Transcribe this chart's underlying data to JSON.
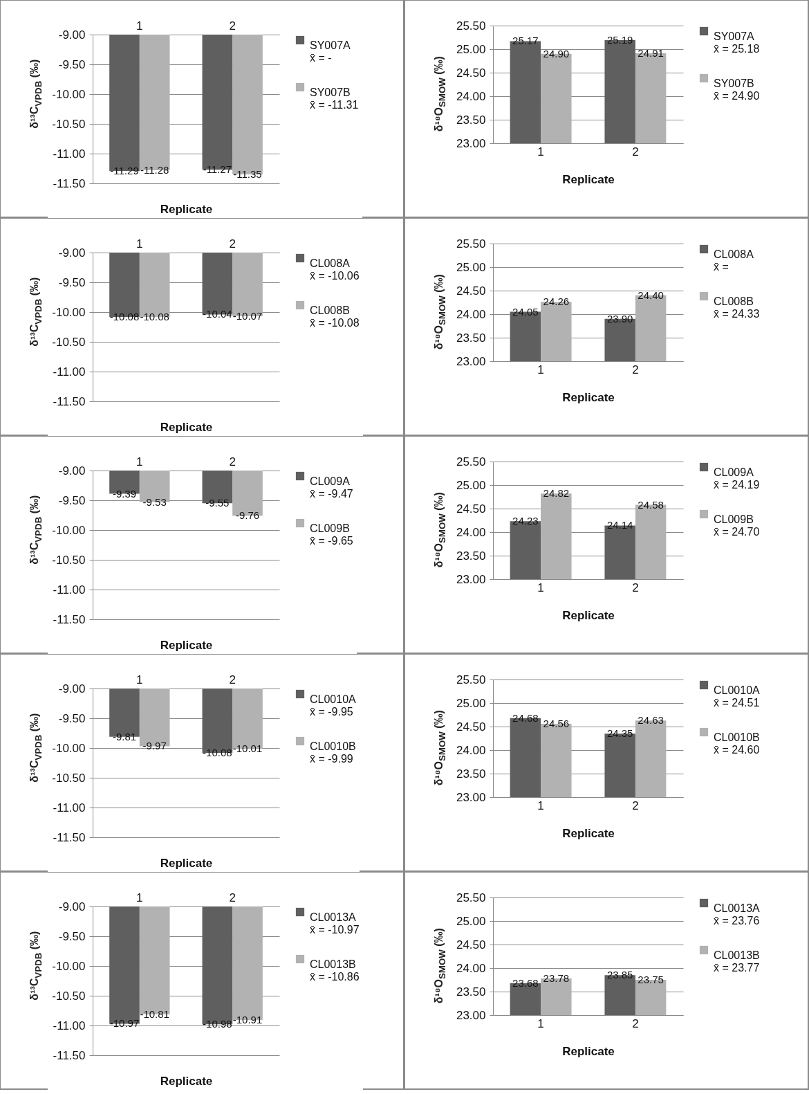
{
  "chart_data": [
    {
      "type": "bar",
      "xlabel": "Replicate",
      "ylabel": "δ¹³C$_{VPDB}$ (‰)",
      "categories": [
        "1",
        "2"
      ],
      "ylim": [
        -11.5,
        -9
      ],
      "yticks": [
        {
          "value": -9,
          "label": "-9.00"
        },
        {
          "value": -9.5,
          "label": "-9.50"
        },
        {
          "value": -10,
          "label": "-10.00"
        },
        {
          "value": -10.5,
          "label": "-10.50"
        },
        {
          "value": -11,
          "label": "-11.00"
        },
        {
          "value": -11.5,
          "label": "-11.50"
        }
      ],
      "grid": "y",
      "legend": "right",
      "annotations": [
        "x̄ = -",
        "x̄ = -11.31"
      ],
      "series": [
        {
          "name": "SY007A",
          "color": "#5f5f5f",
          "values": [
            -11.29,
            -11.27
          ],
          "value_labels": [
            "-11.29",
            "-11.27"
          ]
        },
        {
          "name": "SY007B",
          "color": "#b2b2b2",
          "values": [
            -11.28,
            -11.35
          ],
          "value_labels": [
            "-11.28",
            "-11.35"
          ]
        }
      ]
    },
    {
      "type": "bar",
      "xlabel": "Replicate",
      "ylabel": "δ¹⁸O$_{SMOW}$ (‰)",
      "categories": [
        "1",
        "2"
      ],
      "ylim": [
        23,
        25.5
      ],
      "yticks": [
        {
          "value": 23,
          "label": "23.00"
        },
        {
          "value": 23.5,
          "label": "23.50"
        },
        {
          "value": 24,
          "label": "24.00"
        },
        {
          "value": 24.5,
          "label": "24.50"
        },
        {
          "value": 25,
          "label": "25.00"
        },
        {
          "value": 25.5,
          "label": "25.50"
        }
      ],
      "grid": "y",
      "legend": "right",
      "annotations": [
        "x̄ = 25.18",
        "x̄ = 24.90"
      ],
      "series": [
        {
          "name": "SY007A",
          "color": "#5f5f5f",
          "values": [
            25.17,
            25.19
          ],
          "value_labels": [
            "25.17",
            "25.19"
          ]
        },
        {
          "name": "SY007B",
          "color": "#b2b2b2",
          "values": [
            24.9,
            24.91
          ],
          "value_labels": [
            "24.90",
            "24.91"
          ]
        }
      ]
    },
    {
      "type": "bar",
      "xlabel": "Replicate",
      "ylabel": "δ¹³C$_{VPDB}$ (‰)",
      "categories": [
        "1",
        "2"
      ],
      "ylim": [
        -11.5,
        -9
      ],
      "yticks": [
        {
          "value": -9,
          "label": "-9.00"
        },
        {
          "value": -9.5,
          "label": "-9.50"
        },
        {
          "value": -10,
          "label": "-10.00"
        },
        {
          "value": -10.5,
          "label": "-10.50"
        },
        {
          "value": -11,
          "label": "-11.00"
        },
        {
          "value": -11.5,
          "label": "-11.50"
        }
      ],
      "grid": "y",
      "legend": "right",
      "annotations": [
        "x̄ = -10.06",
        "x̄ = -10.08"
      ],
      "series": [
        {
          "name": "CL008A",
          "color": "#5f5f5f",
          "values": [
            -10.08,
            -10.04
          ],
          "value_labels": [
            "-10.08",
            "-10.04"
          ]
        },
        {
          "name": "CL008B",
          "color": "#b2b2b2",
          "values": [
            -10.08,
            -10.07
          ],
          "value_labels": [
            "-10.08",
            "-10.07"
          ]
        }
      ]
    },
    {
      "type": "bar",
      "xlabel": "Replicate",
      "ylabel": "δ¹⁸O$_{SMOW}$ (‰)",
      "categories": [
        "1",
        "2"
      ],
      "ylim": [
        23,
        25.5
      ],
      "yticks": [
        {
          "value": 23,
          "label": "23.00"
        },
        {
          "value": 23.5,
          "label": "23.50"
        },
        {
          "value": 24,
          "label": "24.00"
        },
        {
          "value": 24.5,
          "label": "24.50"
        },
        {
          "value": 25,
          "label": "25.00"
        },
        {
          "value": 25.5,
          "label": "25.50"
        }
      ],
      "grid": "y",
      "legend": "right",
      "annotations": [
        "x̄ =",
        "x̄ = 24.33"
      ],
      "series": [
        {
          "name": "CL008A",
          "color": "#5f5f5f",
          "values": [
            24.05,
            23.9
          ],
          "value_labels": [
            "24.05",
            "23.90"
          ]
        },
        {
          "name": "CL008B",
          "color": "#b2b2b2",
          "values": [
            24.26,
            24.4
          ],
          "value_labels": [
            "24.26",
            "24.40"
          ]
        }
      ]
    },
    {
      "type": "bar",
      "xlabel": "Replicate",
      "ylabel": "δ¹³C$_{VPDB}$ (‰)",
      "categories": [
        "1",
        "2"
      ],
      "ylim": [
        -11.5,
        -9
      ],
      "yticks": [
        {
          "value": -9,
          "label": "-9.00"
        },
        {
          "value": -9.5,
          "label": "-9.50"
        },
        {
          "value": -10,
          "label": "-10.00"
        },
        {
          "value": -10.5,
          "label": "-10.50"
        },
        {
          "value": -11,
          "label": "-11.00"
        },
        {
          "value": -11.5,
          "label": "-11.50"
        }
      ],
      "grid": "y",
      "legend": "right",
      "annotations": [
        "x̄ = -9.47",
        "x̄ = -9.65"
      ],
      "series": [
        {
          "name": "CL009A",
          "color": "#5f5f5f",
          "values": [
            -9.39,
            -9.55
          ],
          "value_labels": [
            "-9.39",
            "-9.55"
          ]
        },
        {
          "name": "CL009B",
          "color": "#b2b2b2",
          "values": [
            -9.53,
            -9.76
          ],
          "value_labels": [
            "-9.53",
            "-9.76"
          ]
        }
      ]
    },
    {
      "type": "bar",
      "xlabel": "Replicate",
      "ylabel": "δ¹⁸O$_{SMOW}$ (‰)",
      "categories": [
        "1",
        "2"
      ],
      "ylim": [
        23,
        25.5
      ],
      "yticks": [
        {
          "value": 23,
          "label": "23.00"
        },
        {
          "value": 23.5,
          "label": "23.50"
        },
        {
          "value": 24,
          "label": "24.00"
        },
        {
          "value": 24.5,
          "label": "24.50"
        },
        {
          "value": 25,
          "label": "25.00"
        },
        {
          "value": 25.5,
          "label": "25.50"
        }
      ],
      "grid": "y",
      "legend": "right",
      "annotations": [
        "x̄ = 24.19",
        "x̄ = 24.70"
      ],
      "series": [
        {
          "name": "CL009A",
          "color": "#5f5f5f",
          "values": [
            24.23,
            24.14
          ],
          "value_labels": [
            "24.23",
            "24.14"
          ]
        },
        {
          "name": "CL009B",
          "color": "#b2b2b2",
          "values": [
            24.82,
            24.58
          ],
          "value_labels": [
            "24.82",
            "24.58"
          ]
        }
      ]
    },
    {
      "type": "bar",
      "xlabel": "Replicate",
      "ylabel": "δ¹³C$_{VPDB}$ (‰)",
      "categories": [
        "1",
        "2"
      ],
      "ylim": [
        -11.5,
        -9
      ],
      "yticks": [
        {
          "value": -9,
          "label": "-9.00"
        },
        {
          "value": -9.5,
          "label": "-9.50"
        },
        {
          "value": -10,
          "label": "-10.00"
        },
        {
          "value": -10.5,
          "label": "-10.50"
        },
        {
          "value": -11,
          "label": "-11.00"
        },
        {
          "value": -11.5,
          "label": "-11.50"
        }
      ],
      "grid": "y",
      "legend": "right",
      "annotations": [
        "x̄ = -9.95",
        "x̄ = -9.99"
      ],
      "series": [
        {
          "name": "CL0010A",
          "color": "#5f5f5f",
          "values": [
            -9.81,
            -10.08
          ],
          "value_labels": [
            "-9.81",
            "-10.08"
          ]
        },
        {
          "name": "CL0010B",
          "color": "#b2b2b2",
          "values": [
            -9.97,
            -10.01
          ],
          "value_labels": [
            "-9.97",
            "-10.01"
          ]
        }
      ]
    },
    {
      "type": "bar",
      "xlabel": "Replicate",
      "ylabel": "δ¹⁸O$_{SMOW}$ (‰)",
      "categories": [
        "1",
        "2"
      ],
      "ylim": [
        23,
        25.5
      ],
      "yticks": [
        {
          "value": 23,
          "label": "23.00"
        },
        {
          "value": 23.5,
          "label": "23.50"
        },
        {
          "value": 24,
          "label": "24.00"
        },
        {
          "value": 24.5,
          "label": "24.50"
        },
        {
          "value": 25,
          "label": "25.00"
        },
        {
          "value": 25.5,
          "label": "25.50"
        }
      ],
      "grid": "y",
      "legend": "right",
      "annotations": [
        "x̄ = 24.51",
        "x̄ = 24.60"
      ],
      "series": [
        {
          "name": "CL0010A",
          "color": "#5f5f5f",
          "values": [
            24.68,
            24.35
          ],
          "value_labels": [
            "24.68",
            "24.35"
          ]
        },
        {
          "name": "CL0010B",
          "color": "#b2b2b2",
          "values": [
            24.56,
            24.63
          ],
          "value_labels": [
            "24.56",
            "24.63"
          ]
        }
      ]
    },
    {
      "type": "bar",
      "xlabel": "Replicate",
      "ylabel": "δ¹³C$_{VPDB}$ (‰)",
      "categories": [
        "1",
        "2"
      ],
      "ylim": [
        -11.5,
        -9
      ],
      "yticks": [
        {
          "value": -9,
          "label": "-9.00"
        },
        {
          "value": -9.5,
          "label": "-9.50"
        },
        {
          "value": -10,
          "label": "-10.00"
        },
        {
          "value": -10.5,
          "label": "-10.50"
        },
        {
          "value": -11,
          "label": "-11.00"
        },
        {
          "value": -11.5,
          "label": "-11.50"
        }
      ],
      "grid": "y",
      "legend": "right",
      "annotations": [
        "x̄ = -10.97",
        "x̄ = -10.86"
      ],
      "series": [
        {
          "name": "CL0013A",
          "color": "#5f5f5f",
          "values": [
            -10.97,
            -10.98
          ],
          "value_labels": [
            "-10.97",
            "-10.98"
          ]
        },
        {
          "name": "CL0013B",
          "color": "#b2b2b2",
          "values": [
            -10.81,
            -10.91
          ],
          "value_labels": [
            "-10.81",
            "-10.91"
          ]
        }
      ]
    },
    {
      "type": "bar",
      "xlabel": "Replicate",
      "ylabel": "δ¹⁸O$_{SMOW}$ (‰)",
      "categories": [
        "1",
        "2"
      ],
      "ylim": [
        23,
        25.5
      ],
      "yticks": [
        {
          "value": 23,
          "label": "23.00"
        },
        {
          "value": 23.5,
          "label": "23.50"
        },
        {
          "value": 24,
          "label": "24.00"
        },
        {
          "value": 24.5,
          "label": "24.50"
        },
        {
          "value": 25,
          "label": "25.00"
        },
        {
          "value": 25.5,
          "label": "25.50"
        }
      ],
      "grid": "y",
      "legend": "right",
      "annotations": [
        "x̄ = 23.76",
        "x̄ = 23.77"
      ],
      "series": [
        {
          "name": "CL0013A",
          "color": "#5f5f5f",
          "values": [
            23.68,
            23.85
          ],
          "value_labels": [
            "23.68",
            "23.85"
          ]
        },
        {
          "name": "CL0013B",
          "color": "#b2b2b2",
          "values": [
            23.78,
            23.75
          ],
          "value_labels": [
            "23.78",
            "23.75"
          ]
        }
      ]
    }
  ]
}
